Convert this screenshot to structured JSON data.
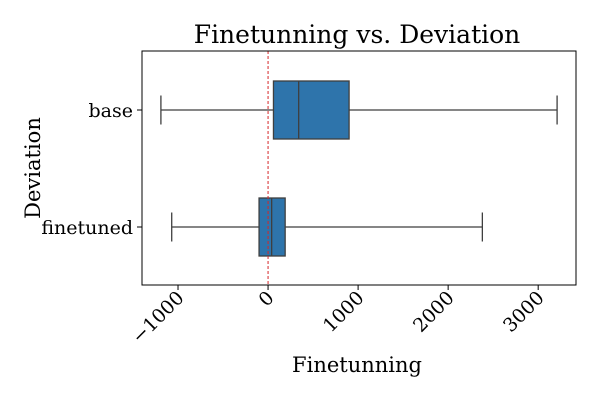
{
  "chart_data": {
    "type": "boxplot",
    "orientation": "horizontal",
    "title": "Finetunning vs. Deviation",
    "xlabel": "Finetunning",
    "ylabel": "Deviation",
    "xlim": [
      -1400,
      3420
    ],
    "xticks": [
      -1000,
      0,
      1000,
      2000,
      3000
    ],
    "xtick_labels": [
      "−1000",
      "0",
      "1000",
      "2000",
      "3000"
    ],
    "categories": [
      "base",
      "finetuned"
    ],
    "boxes": [
      {
        "category": "base",
        "whisker_low": -1190,
        "q1": 60,
        "median": 340,
        "q3": 900,
        "whisker_high": 3210
      },
      {
        "category": "finetuned",
        "whisker_low": -1070,
        "q1": -100,
        "median": 40,
        "q3": 190,
        "whisker_high": 2380
      }
    ],
    "reference_line": {
      "x": 0,
      "style": "dashed",
      "color": "#d62728"
    },
    "box_color": "#2e74ab",
    "grid": false,
    "legend": false
  }
}
